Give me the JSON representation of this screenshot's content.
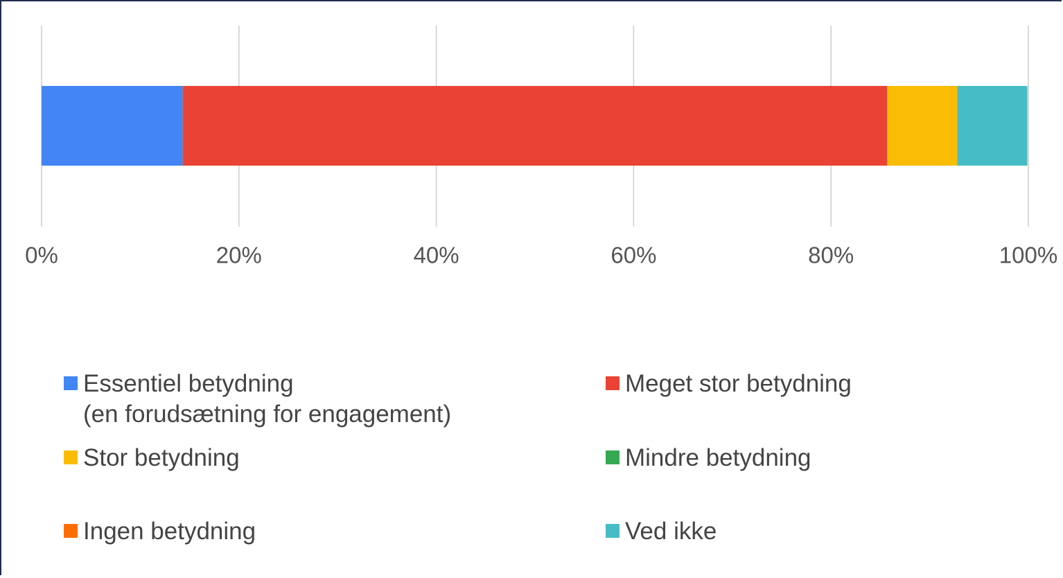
{
  "chart_data": {
    "type": "stacked_bar_horizontal",
    "categories": [
      null
    ],
    "series": [
      {
        "name": "Essentiel betydning\n(en forudsætning for engagement)",
        "color": "#4285f4",
        "values": [
          14.3
        ]
      },
      {
        "name": "Meget stor betydning",
        "color": "#ea4335",
        "values": [
          71.4
        ]
      },
      {
        "name": "Stor betydning",
        "color": "#fbbc04",
        "values": [
          7.1
        ]
      },
      {
        "name": "Mindre betydning",
        "color": "#34a853",
        "values": [
          0
        ]
      },
      {
        "name": "Ingen betydning",
        "color": "#ff6d01",
        "values": [
          0
        ]
      },
      {
        "name": "Ved ikke",
        "color": "#46bdc6",
        "values": [
          7.1
        ]
      }
    ],
    "xlim": [
      0,
      100
    ],
    "xticks": [
      {
        "value": 0,
        "label": "0%"
      },
      {
        "value": 20,
        "label": "20%"
      },
      {
        "value": 40,
        "label": "40%"
      },
      {
        "value": 60,
        "label": "60%"
      },
      {
        "value": 80,
        "label": "80%"
      },
      {
        "value": 100,
        "label": "100%"
      }
    ],
    "grid": true,
    "legend": "bottom"
  }
}
